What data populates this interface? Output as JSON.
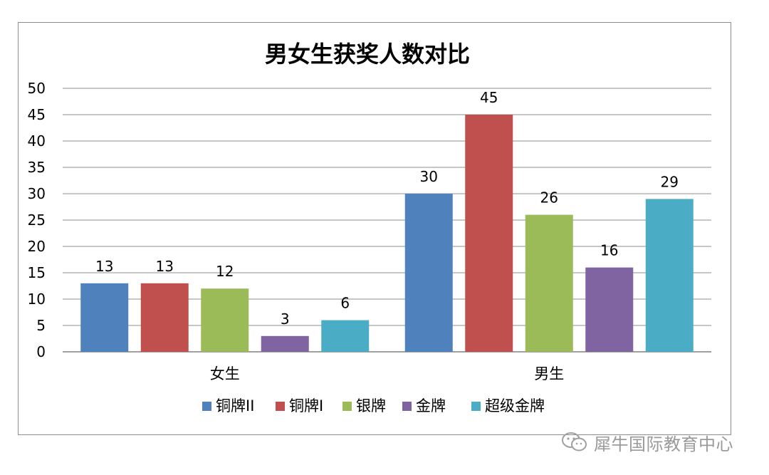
{
  "chart_data": {
    "type": "bar",
    "title": "男女生获奖人数对比",
    "categories": [
      "女生",
      "男生"
    ],
    "series": [
      {
        "name": "铜牌II",
        "values": [
          13,
          30
        ],
        "color": "#4F81BD"
      },
      {
        "name": "铜牌I",
        "values": [
          13,
          45
        ],
        "color": "#C0504D"
      },
      {
        "name": "银牌",
        "values": [
          12,
          26
        ],
        "color": "#9BBB59"
      },
      {
        "name": "金牌",
        "values": [
          3,
          16
        ],
        "color": "#8064A2"
      },
      {
        "name": "超级金牌",
        "values": [
          6,
          29
        ],
        "color": "#4BACC6"
      }
    ],
    "yticks": [
      0,
      5,
      10,
      15,
      20,
      25,
      30,
      35,
      40,
      45,
      50
    ],
    "ylim": [
      0,
      50
    ],
    "grid": true,
    "data_labels": true,
    "legend_position": "bottom"
  },
  "watermark": {
    "text": "犀牛国际教育中心",
    "icon": "wechat-icon"
  }
}
